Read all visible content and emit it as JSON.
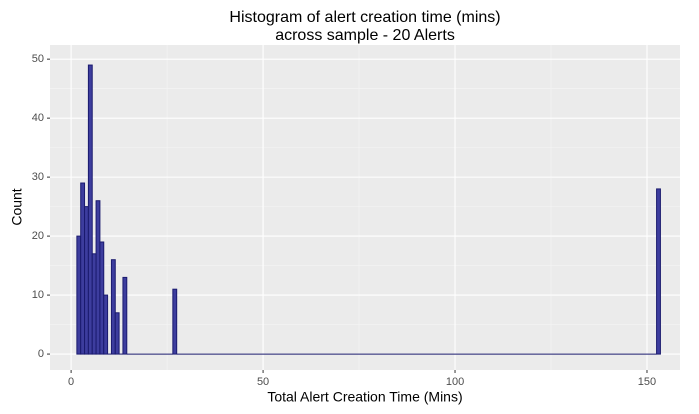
{
  "chart_data": {
    "type": "histogram",
    "title": [
      "Histogram of alert creation time (mins)",
      "across sample - 20 Alerts"
    ],
    "x_label": "Total Alert Creation Time (Mins)",
    "y_label": "Count",
    "bins": [
      1.5,
      2.5,
      3.5,
      4.5,
      5.5,
      6.5,
      7.5,
      8.5,
      9.5,
      10.5,
      11.5,
      12.5,
      13.5,
      14.5,
      26.5,
      27.5,
      152.5,
      153.5
    ],
    "counts": [
      20,
      29,
      25,
      49,
      17,
      26,
      19,
      10,
      0,
      16,
      7,
      0,
      13,
      0,
      11,
      0,
      28
    ],
    "color": "#3d3d9e",
    "edge_color": "#1a1a6e",
    "xlim": [
      -5.5,
      158.6
    ],
    "xticks": [
      0,
      50,
      100,
      150
    ],
    "ylim": [
      -2.7,
      52.4
    ],
    "yticks": [
      0,
      10,
      20,
      30,
      40,
      50
    ],
    "grid": true
  }
}
